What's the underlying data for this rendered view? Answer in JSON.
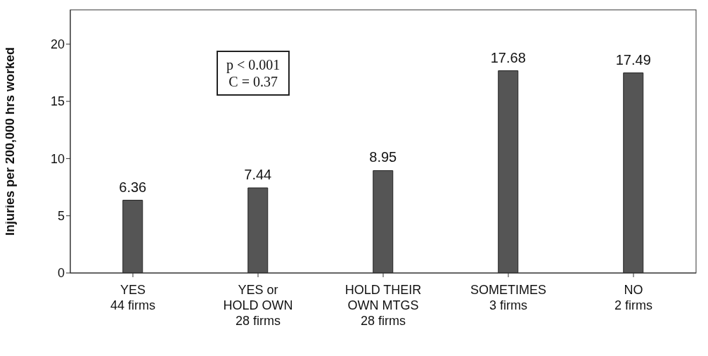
{
  "chart_data": {
    "type": "bar",
    "ylabel": "Injuries per 200,000 hrs worked",
    "categories": [
      "YES\n44 firms",
      "YES or\nHOLD OWN\n28 firms",
      "HOLD THEIR\nOWN MTGS\n28 firms",
      "SOMETIMES\n3 firms",
      "NO\n2 firms"
    ],
    "values": [
      6.36,
      7.44,
      8.95,
      17.68,
      17.49
    ],
    "color": "#555555",
    "data_labels": true,
    "ylim": [
      0,
      23
    ],
    "yticks": [
      0,
      5,
      10,
      15,
      20
    ],
    "grid": false,
    "annotations": [
      "p < 0.001\nC = 0.37"
    ]
  }
}
